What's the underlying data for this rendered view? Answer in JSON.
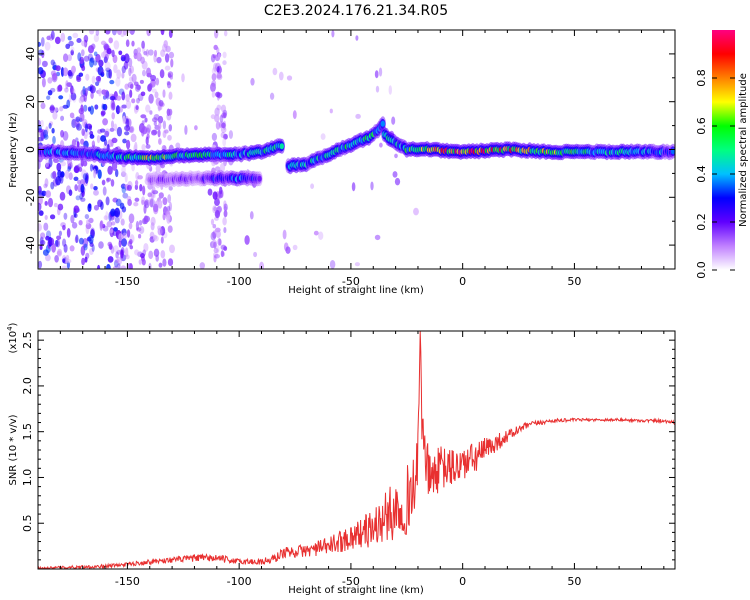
{
  "title": "C2E3.2024.176.21.34.R05",
  "chart_data": [
    {
      "type": "heatmap",
      "xlabel": "Height of straight line (km)",
      "ylabel": "Frequency (Hz)",
      "xlim": [
        -190,
        95
      ],
      "ylim": [
        -50,
        50
      ],
      "xticks": [
        -150,
        -100,
        -50,
        0,
        50
      ],
      "yticks": [
        -40,
        -20,
        0,
        20,
        40
      ],
      "colorbar": {
        "label": "Normalized spectral amplitude",
        "range": [
          0.0,
          1.0
        ],
        "ticks": [
          0.0,
          0.2,
          0.4,
          0.6,
          0.8
        ],
        "colormap": [
          "#ffffff",
          "#c080ff",
          "#6000ff",
          "#0000ff",
          "#00c0ff",
          "#00ff80",
          "#00ff00",
          "#ffff00",
          "#ff8000",
          "#ff0000",
          "#ff0080"
        ]
      },
      "ridges": [
        {
          "points": [
            [
              -190,
              -1,
              0.3
            ],
            [
              -170,
              -1.5,
              0.35
            ],
            [
              -155,
              -3,
              0.4
            ],
            [
              -140,
              -3.5,
              0.6
            ],
            [
              -125,
              -2.5,
              0.45
            ],
            [
              -110,
              -2,
              0.5
            ],
            [
              -100,
              -2,
              0.4
            ],
            [
              -90,
              -1,
              0.45
            ],
            [
              -80,
              2,
              0.4
            ]
          ]
        },
        {
          "points": [
            [
              -140,
              -13,
              0.15
            ],
            [
              -120,
              -12,
              0.18
            ],
            [
              -100,
              -12,
              0.35
            ],
            [
              -90,
              -12,
              0.2
            ]
          ]
        },
        {
          "points": [
            [
              -78,
              -7,
              0.35
            ],
            [
              -70,
              -6,
              0.4
            ],
            [
              -60,
              -2,
              0.45
            ],
            [
              -50,
              2,
              0.5
            ],
            [
              -42,
              5,
              0.5
            ],
            [
              -38,
              8,
              0.4
            ],
            [
              -35,
              12,
              0.3
            ]
          ]
        },
        {
          "points": [
            [
              -35,
              6,
              0.4
            ],
            [
              -30,
              3,
              0.45
            ],
            [
              -25,
              0,
              0.4
            ]
          ]
        },
        {
          "points": [
            [
              -25,
              0,
              0.5
            ],
            [
              -15,
              0,
              0.7
            ],
            [
              0,
              -1,
              0.8
            ],
            [
              20,
              0,
              0.75
            ],
            [
              40,
              -1,
              0.55
            ],
            [
              60,
              -1,
              0.45
            ],
            [
              80,
              -1,
              0.4
            ],
            [
              95,
              -1,
              0.35
            ]
          ]
        }
      ]
    },
    {
      "type": "line",
      "xlabel": "Height of straight line (km)",
      "ylabel": "SNR (10 * v/v)",
      "y_multiplier_label": "(x10",
      "y_multiplier_exp": "4",
      "xlim": [
        -190,
        95
      ],
      "ylim": [
        0,
        2.6
      ],
      "xticks": [
        -150,
        -100,
        -50,
        0,
        50
      ],
      "yticks": [
        0.5,
        1.0,
        1.5,
        2.0,
        2.5
      ],
      "color": "#e83030",
      "series": [
        {
          "x": [
            -190,
            -160,
            -150,
            -140,
            -130,
            -120,
            -110,
            -100,
            -90,
            -85,
            -80,
            -70,
            -60,
            -50,
            -45,
            -40,
            -35,
            -30,
            -25,
            -22,
            -20,
            -19,
            -18,
            -15,
            -12,
            -10,
            -5,
            0,
            5,
            10,
            15,
            20,
            25,
            30,
            40,
            50,
            60,
            70,
            80,
            90,
            95
          ],
          "y": [
            0.01,
            0.03,
            0.05,
            0.08,
            0.1,
            0.12,
            0.12,
            0.08,
            0.08,
            0.1,
            0.18,
            0.2,
            0.25,
            0.35,
            0.4,
            0.45,
            0.55,
            0.65,
            0.75,
            0.9,
            1.1,
            2.6,
            1.4,
            1.0,
            1.05,
            1.1,
            1.1,
            1.15,
            1.2,
            1.3,
            1.38,
            1.45,
            1.52,
            1.58,
            1.62,
            1.63,
            1.63,
            1.63,
            1.62,
            1.62,
            1.6
          ],
          "noise": [
            0.01,
            0.02,
            0.02,
            0.03,
            0.03,
            0.04,
            0.04,
            0.03,
            0.04,
            0.05,
            0.06,
            0.07,
            0.1,
            0.14,
            0.17,
            0.22,
            0.28,
            0.33,
            0.38,
            0.42,
            0.4,
            0.0,
            0.35,
            0.28,
            0.25,
            0.25,
            0.22,
            0.2,
            0.18,
            0.14,
            0.1,
            0.07,
            0.05,
            0.03,
            0.02,
            0.015,
            0.015,
            0.015,
            0.015,
            0.02,
            0.02
          ]
        }
      ]
    }
  ]
}
